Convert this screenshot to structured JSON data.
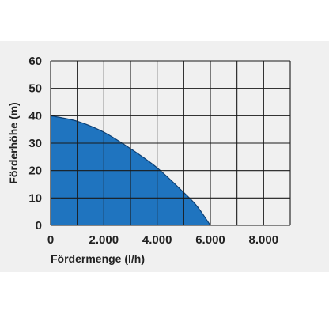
{
  "chart_data": {
    "type": "area",
    "title": "",
    "xlabel": "Fördermenge (l/h)",
    "ylabel": "Förderhöhe (m)",
    "xlim": [
      0,
      9000
    ],
    "ylim": [
      0,
      60
    ],
    "x_ticks": [
      0,
      2000,
      4000,
      6000,
      8000
    ],
    "x_tick_labels": [
      "0",
      "2.000",
      "4.000",
      "6.000",
      "8.000"
    ],
    "y_ticks": [
      0,
      10,
      20,
      30,
      40,
      50,
      60
    ],
    "y_tick_labels": [
      "0",
      "10",
      "20",
      "30",
      "40",
      "50",
      "60"
    ],
    "grid": true,
    "grid_x_step": 1000,
    "grid_y_step": 10,
    "series": [
      {
        "x": [
          0,
          1000,
          2000,
          3000,
          4000,
          5000,
          5500,
          6000
        ],
        "y": [
          40,
          38,
          34,
          28,
          21,
          12,
          7,
          0
        ]
      }
    ],
    "colors": {
      "fill": "#1f74bf",
      "curve": "#0d3f73",
      "grid": "#1a1a1a",
      "text": "#222222",
      "band": "#f0f0f0"
    }
  }
}
